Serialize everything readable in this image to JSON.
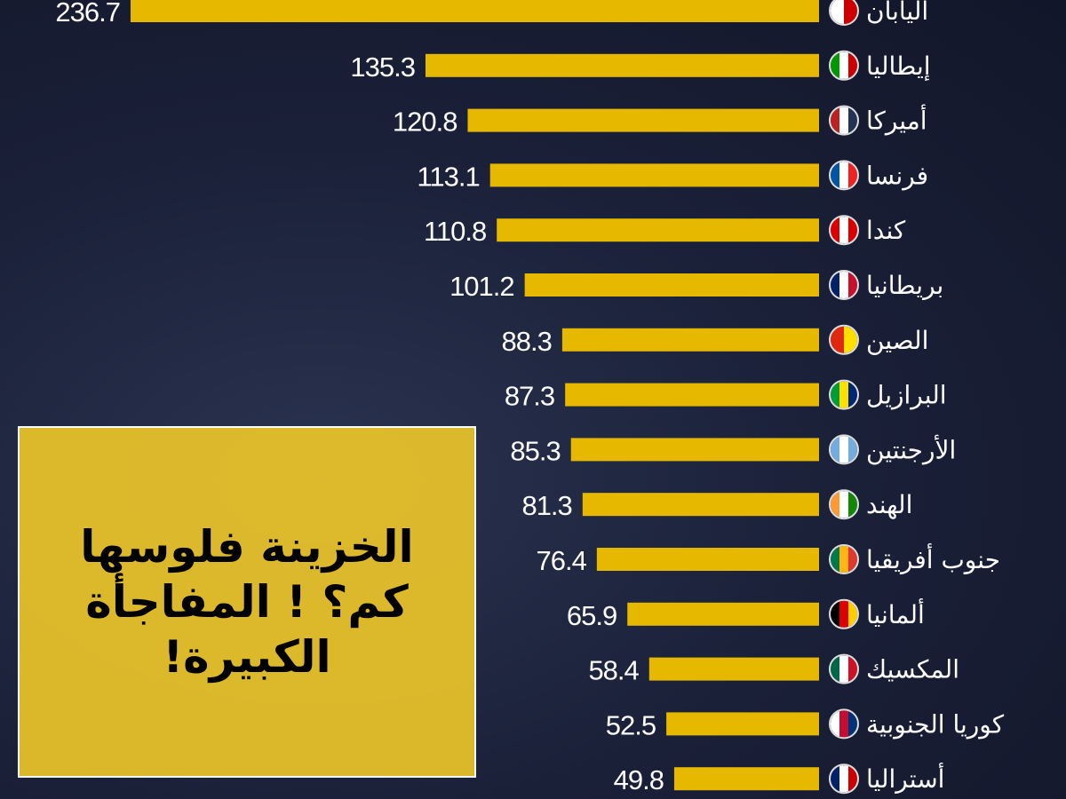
{
  "chart_data": {
    "type": "bar",
    "orientation": "horizontal",
    "categories": [
      "اليابان",
      "إيطاليا",
      "أميركا",
      "فرنسا",
      "كندا",
      "بريطانيا",
      "الصين",
      "البرازيل",
      "الأرجنتين",
      "الهند",
      "جنوب أفريقيا",
      "ألمانيا",
      "المكسيك",
      "كوريا الجنوبية",
      "أستراليا"
    ],
    "values": [
      236.7,
      135.3,
      120.8,
      113.1,
      110.8,
      101.2,
      88.3,
      87.3,
      85.3,
      81.3,
      76.4,
      65.9,
      58.4,
      52.5,
      49.8
    ],
    "value_labels": [
      "236.7",
      "135.3",
      "120.8",
      "113.1",
      "110.8",
      "101.2",
      "88.3",
      "87.3",
      "85.3",
      "81.3",
      "76.4",
      "65.9",
      "58.4",
      "52.5",
      "49.8"
    ],
    "flags": [
      "japan-flag",
      "italy-flag",
      "usa-flag",
      "france-flag",
      "canada-flag",
      "uk-flag",
      "china-flag",
      "brazil-flag",
      "argentina-flag",
      "india-flag",
      "south-africa-flag",
      "germany-flag",
      "mexico-flag",
      "south-korea-flag",
      "australia-flag"
    ],
    "bar_color": "#e6b800",
    "grid": false
  },
  "overlay": {
    "title": "الخزينة فلوسها كم؟ ! المفاجأة الكبيرة!",
    "color": "#f6cd28"
  }
}
